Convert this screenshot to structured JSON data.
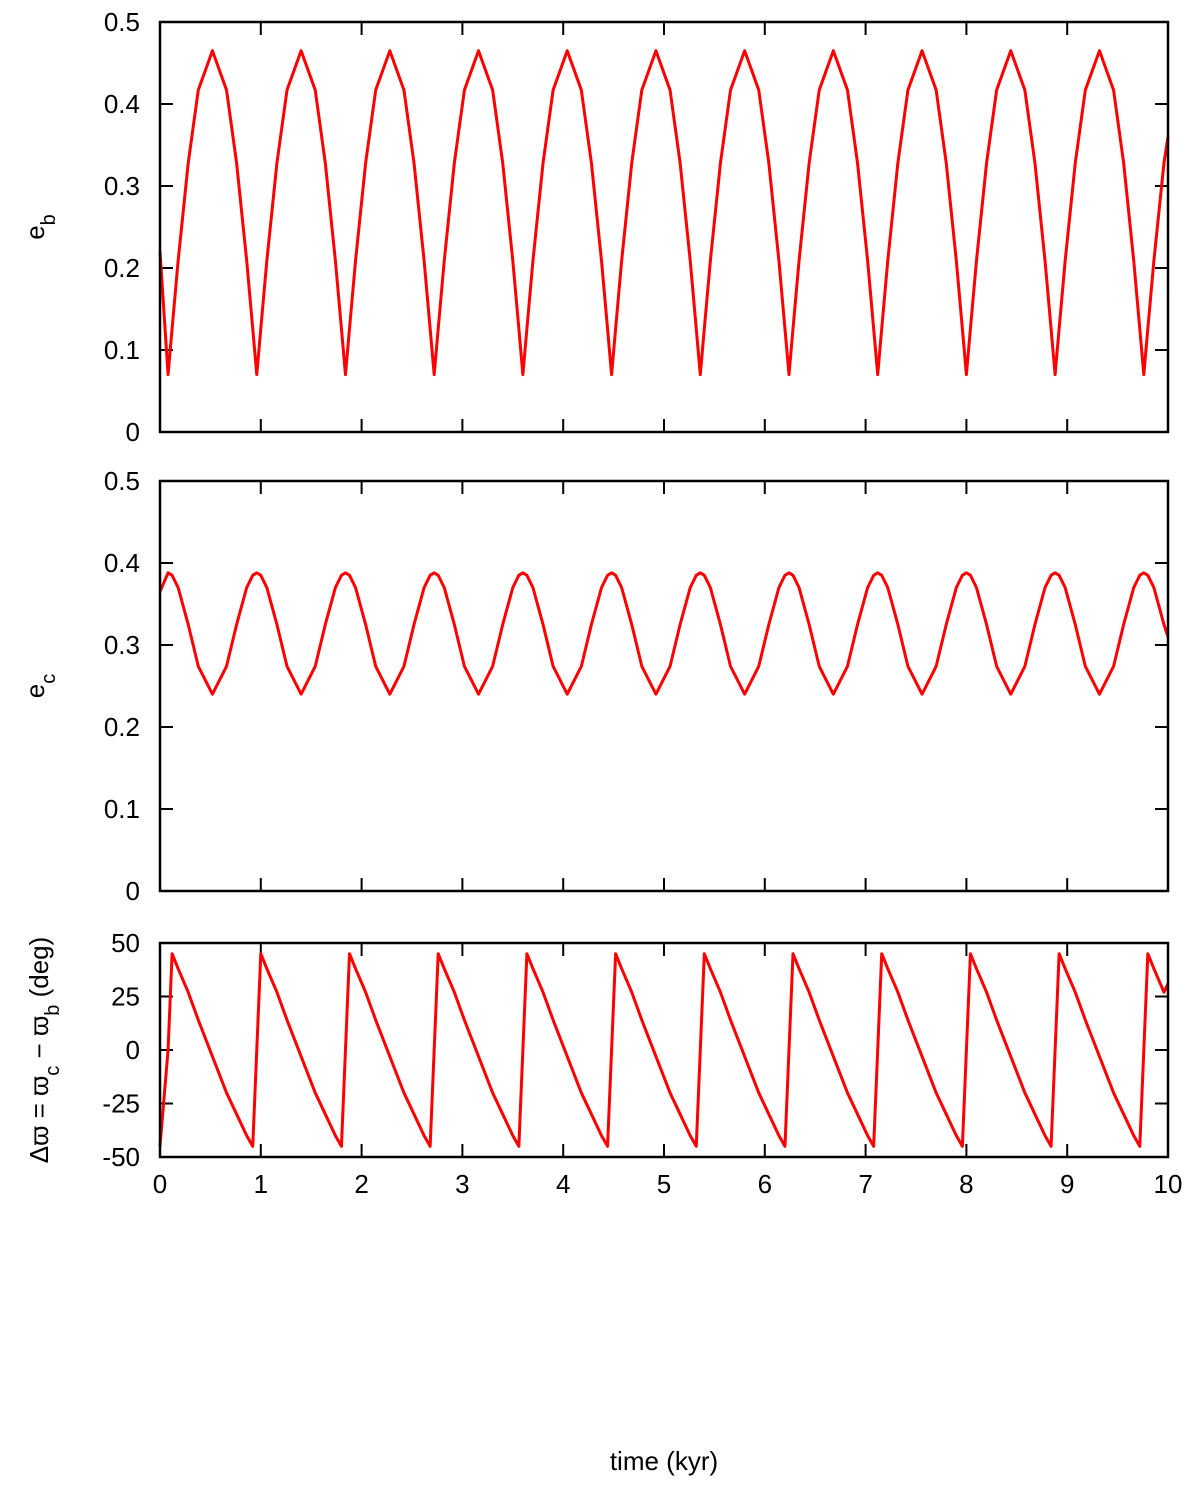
{
  "chart_data": {
    "type": "line",
    "xlabel": "time (kyr)",
    "xlim": [
      0,
      10
    ],
    "xticks": [
      0,
      1,
      2,
      3,
      4,
      5,
      6,
      7,
      8,
      9,
      10
    ],
    "x": [
      0,
      0.08,
      0.12,
      0.18,
      0.28,
      0.38,
      0.52,
      0.66,
      0.76,
      0.86,
      0.92,
      0.96,
      1.0,
      1.06,
      1.16,
      1.26,
      1.4,
      1.54,
      1.64,
      1.74,
      1.8,
      1.84,
      1.88,
      1.94,
      2.04,
      2.14,
      2.28,
      2.42,
      2.52,
      2.62,
      2.68,
      2.72,
      2.76,
      2.82,
      2.92,
      3.02,
      3.16,
      3.3,
      3.4,
      3.5,
      3.56,
      3.6,
      3.64,
      3.7,
      3.8,
      3.9,
      4.04,
      4.18,
      4.28,
      4.38,
      4.44,
      4.48,
      4.52,
      4.58,
      4.68,
      4.78,
      4.92,
      5.06,
      5.16,
      5.26,
      5.32,
      5.36,
      5.4,
      5.46,
      5.56,
      5.66,
      5.8,
      5.94,
      6.04,
      6.14,
      6.2,
      6.24,
      6.28,
      6.34,
      6.44,
      6.54,
      6.68,
      6.82,
      6.92,
      7.02,
      7.08,
      7.12,
      7.16,
      7.22,
      7.32,
      7.42,
      7.56,
      7.7,
      7.8,
      7.9,
      7.96,
      8.0,
      8.04,
      8.1,
      8.2,
      8.3,
      8.44,
      8.58,
      8.68,
      8.78,
      8.84,
      8.88,
      8.92,
      8.98,
      9.08,
      9.18,
      9.32,
      9.46,
      9.56,
      9.66,
      9.72,
      9.76,
      9.8,
      9.86,
      9.96,
      10
    ],
    "panels": [
      {
        "ylabel": [
          {
            "text": "e"
          },
          {
            "text": "b",
            "sub": true
          }
        ],
        "ylim": [
          0,
          0.5
        ],
        "yticks": [
          0,
          0.1,
          0.2,
          0.3,
          0.4,
          0.5
        ],
        "series": [
          {
            "color": "#ff0000",
            "values": [
              0.22,
              0.07,
              0.126,
              0.209,
              0.328,
              0.417,
              0.465,
              0.417,
              0.328,
              0.209,
              0.126,
              0.07,
              0.126,
              0.209,
              0.328,
              0.417,
              0.465,
              0.417,
              0.328,
              0.209,
              0.126,
              0.07,
              0.126,
              0.209,
              0.328,
              0.417,
              0.465,
              0.417,
              0.328,
              0.209,
              0.126,
              0.07,
              0.126,
              0.209,
              0.328,
              0.417,
              0.465,
              0.417,
              0.328,
              0.209,
              0.126,
              0.07,
              0.126,
              0.209,
              0.328,
              0.417,
              0.465,
              0.417,
              0.328,
              0.209,
              0.126,
              0.07,
              0.126,
              0.209,
              0.328,
              0.417,
              0.465,
              0.417,
              0.328,
              0.209,
              0.126,
              0.07,
              0.126,
              0.209,
              0.328,
              0.417,
              0.465,
              0.417,
              0.328,
              0.209,
              0.126,
              0.07,
              0.126,
              0.209,
              0.328,
              0.417,
              0.465,
              0.417,
              0.328,
              0.209,
              0.126,
              0.07,
              0.126,
              0.209,
              0.328,
              0.417,
              0.465,
              0.417,
              0.328,
              0.209,
              0.126,
              0.07,
              0.126,
              0.209,
              0.328,
              0.417,
              0.465,
              0.417,
              0.328,
              0.209,
              0.126,
              0.07,
              0.126,
              0.209,
              0.328,
              0.417,
              0.465,
              0.417,
              0.328,
              0.209,
              0.126,
              0.07,
              0.126,
              0.209,
              0.328,
              0.36
            ]
          }
        ]
      },
      {
        "ylabel": [
          {
            "text": "e"
          },
          {
            "text": "c",
            "sub": true
          }
        ],
        "ylim": [
          0,
          0.5
        ],
        "yticks": [
          0,
          0.1,
          0.2,
          0.3,
          0.4,
          0.5
        ],
        "series": [
          {
            "color": "#ff0000",
            "values": [
              0.365,
              0.388,
              0.385,
              0.37,
              0.325,
              0.274,
              0.24,
              0.274,
              0.325,
              0.37,
              0.385,
              0.388,
              0.385,
              0.37,
              0.325,
              0.274,
              0.24,
              0.274,
              0.325,
              0.37,
              0.385,
              0.388,
              0.385,
              0.37,
              0.325,
              0.274,
              0.24,
              0.274,
              0.325,
              0.37,
              0.385,
              0.388,
              0.385,
              0.37,
              0.325,
              0.274,
              0.24,
              0.274,
              0.325,
              0.37,
              0.385,
              0.388,
              0.385,
              0.37,
              0.325,
              0.274,
              0.24,
              0.274,
              0.325,
              0.37,
              0.385,
              0.388,
              0.385,
              0.37,
              0.325,
              0.274,
              0.24,
              0.274,
              0.325,
              0.37,
              0.385,
              0.388,
              0.385,
              0.37,
              0.325,
              0.274,
              0.24,
              0.274,
              0.325,
              0.37,
              0.385,
              0.388,
              0.385,
              0.37,
              0.325,
              0.274,
              0.24,
              0.274,
              0.325,
              0.37,
              0.385,
              0.388,
              0.385,
              0.37,
              0.325,
              0.274,
              0.24,
              0.274,
              0.325,
              0.37,
              0.385,
              0.388,
              0.385,
              0.37,
              0.325,
              0.274,
              0.24,
              0.274,
              0.325,
              0.37,
              0.385,
              0.388,
              0.385,
              0.37,
              0.325,
              0.274,
              0.24,
              0.274,
              0.325,
              0.37,
              0.385,
              0.388,
              0.385,
              0.37,
              0.325,
              0.31
            ]
          }
        ]
      },
      {
        "ylabel": [
          {
            "text": "Δϖ = ϖ"
          },
          {
            "text": "c",
            "sub": true
          },
          {
            "text": " − ϖ"
          },
          {
            "text": "b",
            "sub": true
          },
          {
            "text": " (deg)"
          }
        ],
        "ylim": [
          -50,
          50
        ],
        "yticks": [
          -50,
          -25,
          0,
          25,
          50
        ],
        "series": [
          {
            "color": "#ff0000",
            "values": [
              -45,
              0,
              45,
              38,
              27,
              14,
              -3,
              -20,
              -30,
              -40,
              -45,
              0,
              45,
              38,
              27,
              14,
              -3,
              -20,
              -30,
              -40,
              -45,
              0,
              45,
              38,
              27,
              14,
              -3,
              -20,
              -30,
              -40,
              -45,
              0,
              45,
              38,
              27,
              14,
              -3,
              -20,
              -30,
              -40,
              -45,
              0,
              45,
              38,
              27,
              14,
              -3,
              -20,
              -30,
              -40,
              -45,
              0,
              45,
              38,
              27,
              14,
              -3,
              -20,
              -30,
              -40,
              -45,
              0,
              45,
              38,
              27,
              14,
              -3,
              -20,
              -30,
              -40,
              -45,
              0,
              45,
              38,
              27,
              14,
              -3,
              -20,
              -30,
              -40,
              -45,
              0,
              45,
              38,
              27,
              14,
              -3,
              -20,
              -30,
              -40,
              -45,
              0,
              45,
              38,
              27,
              14,
              -3,
              -20,
              -30,
              -40,
              -45,
              0,
              45,
              38,
              27,
              14,
              -3,
              -20,
              -30,
              -40,
              -45,
              0,
              45,
              38,
              27,
              31
            ]
          }
        ]
      }
    ]
  }
}
